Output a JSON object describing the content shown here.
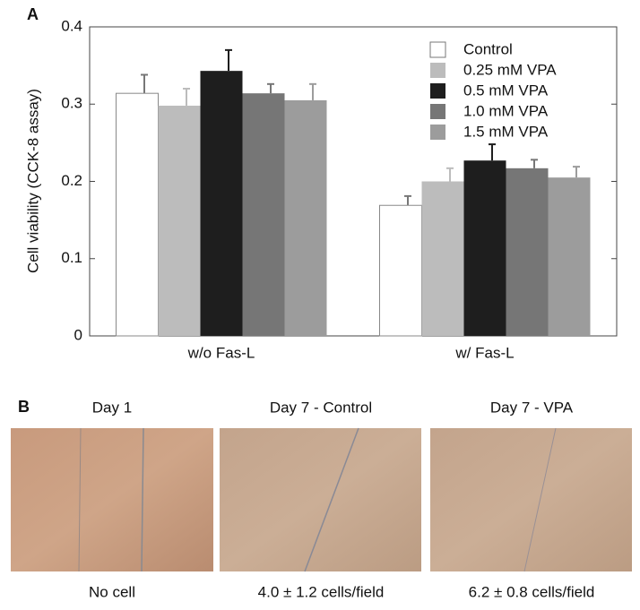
{
  "chart_data": {
    "type": "bar",
    "panel_label": "A",
    "ylabel": "Cell viability (CCK-8 assay)",
    "categories": [
      "w/o Fas-L",
      "w/ Fas-L"
    ],
    "series": [
      {
        "name": "Control",
        "color": "#ffffff",
        "values": [
          0.314,
          0.169
        ],
        "errors": [
          0.024,
          0.012
        ]
      },
      {
        "name": "0.25 mM VPA",
        "color": "#bcbcbc",
        "values": [
          0.298,
          0.2
        ],
        "errors": [
          0.022,
          0.017
        ]
      },
      {
        "name": "0.5 mM VPA",
        "color": "#1e1e1e",
        "values": [
          0.343,
          0.227
        ],
        "errors": [
          0.027,
          0.021
        ]
      },
      {
        "name": "1.0 mM VPA",
        "color": "#767676",
        "values": [
          0.314,
          0.217
        ],
        "errors": [
          0.012,
          0.011
        ]
      },
      {
        "name": "1.5 mM VPA",
        "color": "#9c9c9c",
        "values": [
          0.305,
          0.205
        ],
        "errors": [
          0.021,
          0.014
        ]
      }
    ],
    "ylim": [
      0,
      0.4
    ],
    "yticks": [
      0,
      0.1,
      0.2,
      0.3,
      0.4
    ],
    "legend": "upper right"
  },
  "panel_b": {
    "label": "B",
    "images": [
      {
        "title": "Day 1",
        "caption": "No cell"
      },
      {
        "title": "Day 7 - Control",
        "caption": "4.0 ± 1.2 cells/field"
      },
      {
        "title": "Day 7 - VPA",
        "caption": "6.2 ± 0.8 cells/field"
      }
    ]
  }
}
